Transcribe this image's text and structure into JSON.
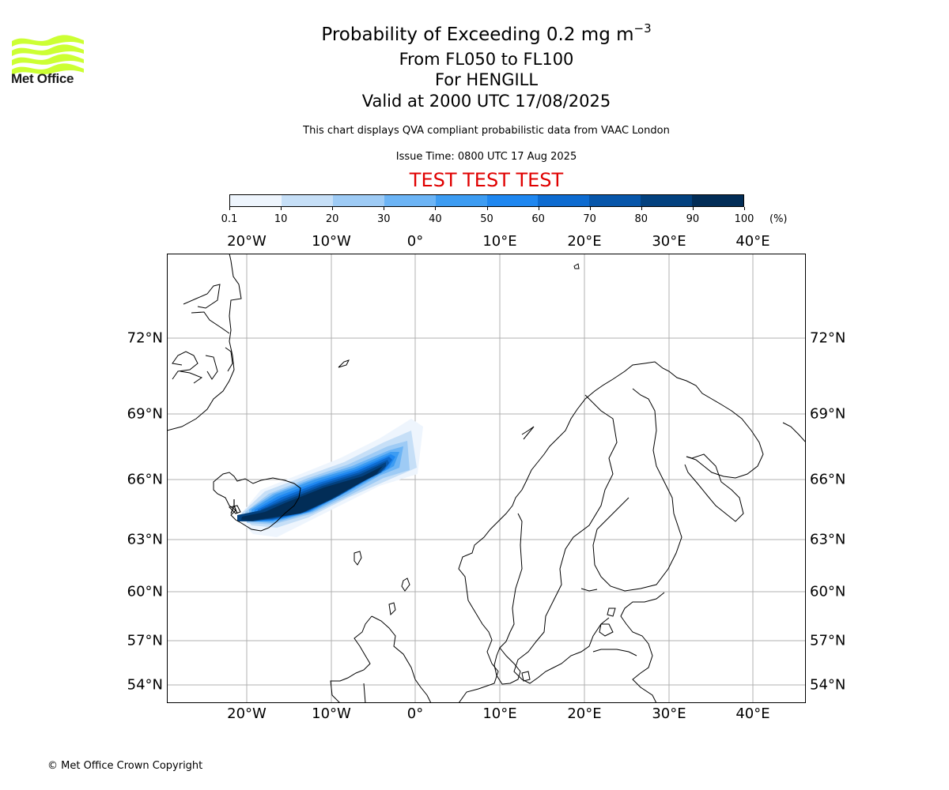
{
  "logo": {
    "text": "Met Office",
    "color": "#ccff33"
  },
  "title": {
    "line1_main": "Probability of Exceeding 0.2 mg m",
    "line1_sup": "−3",
    "line2": "From FL050 to FL100",
    "line3": "For HENGILL",
    "line4": "Valid at 2000 UTC 17/08/2025",
    "line5": "This chart displays QVA compliant probabilistic data from VAAC London",
    "line6": "Issue Time: 0800 UTC 17 Aug 2025",
    "line7": "TEST TEST TEST"
  },
  "colorbar": {
    "colors": [
      "#eef5fd",
      "#c6dff7",
      "#9ecbf5",
      "#6cb4f5",
      "#3d9cf2",
      "#1f87f0",
      "#0d6bd0",
      "#0756aa",
      "#03417f",
      "#022d57"
    ],
    "tick_labels": [
      "0.1",
      "10",
      "20",
      "30",
      "40",
      "50",
      "60",
      "70",
      "80",
      "90",
      "100"
    ],
    "unit": "(%)"
  },
  "map": {
    "lon_labels": [
      "20°W",
      "10°W",
      "0°",
      "10°E",
      "20°E",
      "30°E",
      "40°E"
    ],
    "lat_labels": [
      "72°N",
      "69°N",
      "66°N",
      "63°N",
      "60°N",
      "57°N",
      "54°N"
    ],
    "volcano": "HENGILL"
  },
  "copyright": "© Met Office Crown Copyright"
}
